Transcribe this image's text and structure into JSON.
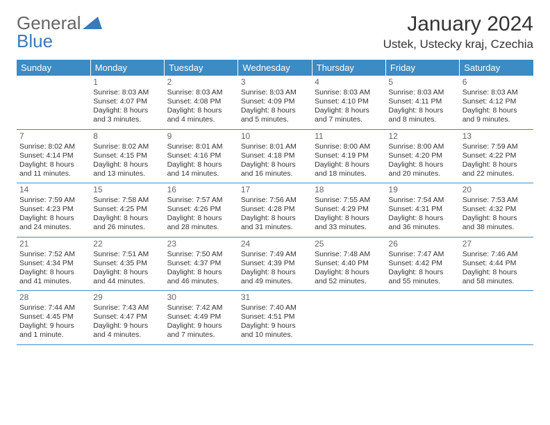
{
  "logo": {
    "word1": "General",
    "word2": "Blue"
  },
  "title": "January 2024",
  "location": "Ustek, Ustecky kraj, Czechia",
  "colors": {
    "header_bg": "#3b8bc4",
    "header_text": "#ffffff",
    "border": "#3b8bc4",
    "logo_gray": "#666666",
    "logo_blue": "#3a7ab8",
    "text": "#333333",
    "daynum": "#666666"
  },
  "weekdays": [
    "Sunday",
    "Monday",
    "Tuesday",
    "Wednesday",
    "Thursday",
    "Friday",
    "Saturday"
  ],
  "weeks": [
    [
      null,
      {
        "n": "1",
        "sr": "8:03 AM",
        "ss": "4:07 PM",
        "dl": "8 hours and 3 minutes."
      },
      {
        "n": "2",
        "sr": "8:03 AM",
        "ss": "4:08 PM",
        "dl": "8 hours and 4 minutes."
      },
      {
        "n": "3",
        "sr": "8:03 AM",
        "ss": "4:09 PM",
        "dl": "8 hours and 5 minutes."
      },
      {
        "n": "4",
        "sr": "8:03 AM",
        "ss": "4:10 PM",
        "dl": "8 hours and 7 minutes."
      },
      {
        "n": "5",
        "sr": "8:03 AM",
        "ss": "4:11 PM",
        "dl": "8 hours and 8 minutes."
      },
      {
        "n": "6",
        "sr": "8:03 AM",
        "ss": "4:12 PM",
        "dl": "8 hours and 9 minutes."
      }
    ],
    [
      {
        "n": "7",
        "sr": "8:02 AM",
        "ss": "4:14 PM",
        "dl": "8 hours and 11 minutes."
      },
      {
        "n": "8",
        "sr": "8:02 AM",
        "ss": "4:15 PM",
        "dl": "8 hours and 13 minutes."
      },
      {
        "n": "9",
        "sr": "8:01 AM",
        "ss": "4:16 PM",
        "dl": "8 hours and 14 minutes."
      },
      {
        "n": "10",
        "sr": "8:01 AM",
        "ss": "4:18 PM",
        "dl": "8 hours and 16 minutes."
      },
      {
        "n": "11",
        "sr": "8:00 AM",
        "ss": "4:19 PM",
        "dl": "8 hours and 18 minutes."
      },
      {
        "n": "12",
        "sr": "8:00 AM",
        "ss": "4:20 PM",
        "dl": "8 hours and 20 minutes."
      },
      {
        "n": "13",
        "sr": "7:59 AM",
        "ss": "4:22 PM",
        "dl": "8 hours and 22 minutes."
      }
    ],
    [
      {
        "n": "14",
        "sr": "7:59 AM",
        "ss": "4:23 PM",
        "dl": "8 hours and 24 minutes."
      },
      {
        "n": "15",
        "sr": "7:58 AM",
        "ss": "4:25 PM",
        "dl": "8 hours and 26 minutes."
      },
      {
        "n": "16",
        "sr": "7:57 AM",
        "ss": "4:26 PM",
        "dl": "8 hours and 28 minutes."
      },
      {
        "n": "17",
        "sr": "7:56 AM",
        "ss": "4:28 PM",
        "dl": "8 hours and 31 minutes."
      },
      {
        "n": "18",
        "sr": "7:55 AM",
        "ss": "4:29 PM",
        "dl": "8 hours and 33 minutes."
      },
      {
        "n": "19",
        "sr": "7:54 AM",
        "ss": "4:31 PM",
        "dl": "8 hours and 36 minutes."
      },
      {
        "n": "20",
        "sr": "7:53 AM",
        "ss": "4:32 PM",
        "dl": "8 hours and 38 minutes."
      }
    ],
    [
      {
        "n": "21",
        "sr": "7:52 AM",
        "ss": "4:34 PM",
        "dl": "8 hours and 41 minutes."
      },
      {
        "n": "22",
        "sr": "7:51 AM",
        "ss": "4:35 PM",
        "dl": "8 hours and 44 minutes."
      },
      {
        "n": "23",
        "sr": "7:50 AM",
        "ss": "4:37 PM",
        "dl": "8 hours and 46 minutes."
      },
      {
        "n": "24",
        "sr": "7:49 AM",
        "ss": "4:39 PM",
        "dl": "8 hours and 49 minutes."
      },
      {
        "n": "25",
        "sr": "7:48 AM",
        "ss": "4:40 PM",
        "dl": "8 hours and 52 minutes."
      },
      {
        "n": "26",
        "sr": "7:47 AM",
        "ss": "4:42 PM",
        "dl": "8 hours and 55 minutes."
      },
      {
        "n": "27",
        "sr": "7:46 AM",
        "ss": "4:44 PM",
        "dl": "8 hours and 58 minutes."
      }
    ],
    [
      {
        "n": "28",
        "sr": "7:44 AM",
        "ss": "4:45 PM",
        "dl": "9 hours and 1 minute."
      },
      {
        "n": "29",
        "sr": "7:43 AM",
        "ss": "4:47 PM",
        "dl": "9 hours and 4 minutes."
      },
      {
        "n": "30",
        "sr": "7:42 AM",
        "ss": "4:49 PM",
        "dl": "9 hours and 7 minutes."
      },
      {
        "n": "31",
        "sr": "7:40 AM",
        "ss": "4:51 PM",
        "dl": "9 hours and 10 minutes."
      },
      null,
      null,
      null
    ]
  ],
  "labels": {
    "sunrise": "Sunrise: ",
    "sunset": "Sunset: ",
    "daylight": "Daylight: "
  }
}
